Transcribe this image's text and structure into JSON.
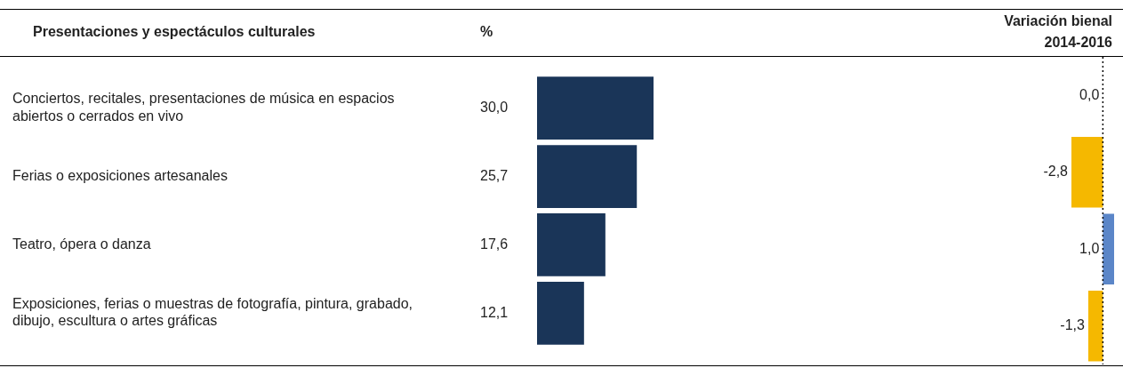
{
  "chart_data": [
    {
      "type": "bar",
      "orientation": "horizontal",
      "ylabel": "Presentaciones y espectáculos culturales",
      "xlabel": "%",
      "categories": [
        "Conciertos, recitales, presentaciones de música en espacios abiertos o cerrados en vivo",
        "Ferias o exposiciones artesanales",
        "Teatro, ópera o danza",
        "Exposiciones, ferias o muestras de fotografía, pintura, grabado, dibujo, escultura o artes gráficas"
      ],
      "values": [
        30.0,
        25.7,
        17.6,
        12.1
      ],
      "color": "#1a3558",
      "value_labels": [
        "30,0",
        "25,7",
        "17,6",
        "12,1"
      ]
    },
    {
      "type": "bar",
      "orientation": "horizontal",
      "title": "Variación bienal 2014-2016",
      "categories": [
        null,
        null,
        null,
        null
      ],
      "values": [
        0.0,
        -2.8,
        1.0,
        -1.3
      ],
      "colors": [
        "#f5b800",
        "#f5b800",
        "#5b86c8",
        "#f5b800"
      ],
      "value_labels": [
        "0,0",
        "-2,8",
        "1,0",
        "-1,3"
      ],
      "ref_lines": [
        {
          "axis": "x",
          "value": 0,
          "line_style": "dotted",
          "color": "#000000"
        }
      ]
    }
  ]
}
